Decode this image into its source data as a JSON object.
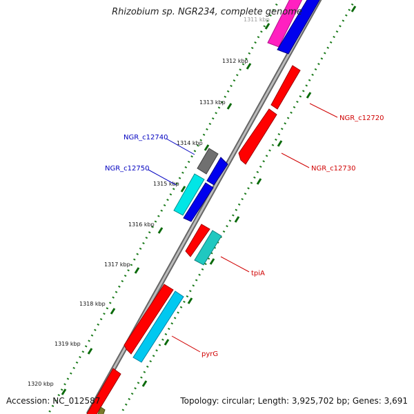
{
  "map": {
    "title": "Rhizobium sp. NGR234, complete genome",
    "accession": "Accession: NC_012587",
    "topology": "Topology: circular; Length: 3,925,702 bp; Genes: 3,691",
    "tick_labels": [
      "1311 kbp",
      "1312 kbp",
      "1313 kbp",
      "1314 kbp",
      "1315 kbp",
      "1316 kbp",
      "1317 kbp",
      "1318 kbp",
      "1319 kbp",
      "1320 kbp"
    ],
    "feature_labels": {
      "ngr_c12720": "NGR_c12720",
      "ngr_c12730": "NGR_c12730",
      "ngr_c12740": "NGR_c12740",
      "ngr_c12750": "NGR_c12750",
      "tpia": "tpiA",
      "pyrg": "pyrG"
    },
    "colors": {
      "backbone": "#8c8c8c",
      "dotted_track": "#1a7a1a",
      "red": "#ff0000",
      "blue": "#0000ee",
      "cyan": "#00e6e6",
      "light_blue": "#00c8f0",
      "teal": "#20c8c0",
      "magenta": "#ff20c0",
      "gray": "#707070",
      "label_red": "#d00000",
      "label_blue": "#0000c0"
    }
  }
}
